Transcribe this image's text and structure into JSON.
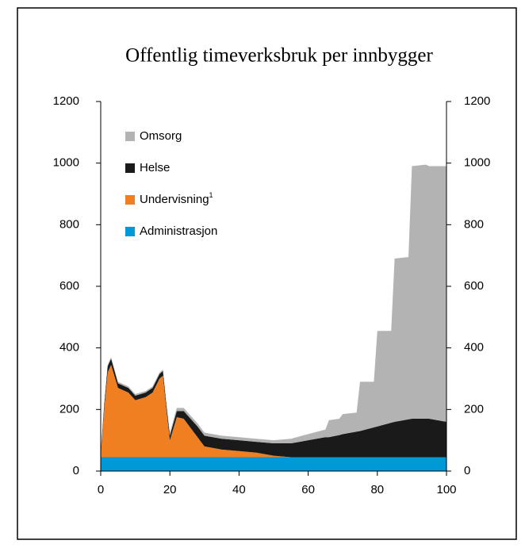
{
  "chart_data": {
    "type": "stacked_area",
    "title": "Offentlig timeverksbruk per innbygger",
    "x": [
      0,
      1,
      2,
      3,
      5,
      8,
      10,
      13,
      15,
      17,
      18,
      19,
      20,
      22,
      24,
      26,
      28,
      30,
      35,
      40,
      45,
      50,
      55,
      60,
      65,
      66,
      69,
      70,
      74,
      75,
      79,
      80,
      84,
      85,
      89,
      90,
      94,
      95,
      100
    ],
    "series": [
      {
        "name": "Omsorg",
        "color": "#b3b3b3",
        "values": [
          5,
          5,
          5,
          5,
          5,
          5,
          5,
          5,
          5,
          5,
          5,
          5,
          10,
          10,
          10,
          10,
          10,
          10,
          10,
          10,
          10,
          10,
          15,
          20,
          25,
          55,
          53,
          65,
          62,
          160,
          148,
          310,
          298,
          530,
          527,
          820,
          825,
          820,
          830
        ]
      },
      {
        "name": "Helse",
        "color": "#1a1a1a",
        "values": [
          10,
          15,
          20,
          20,
          15,
          15,
          15,
          15,
          15,
          15,
          15,
          15,
          15,
          20,
          25,
          30,
          35,
          35,
          35,
          35,
          35,
          40,
          45,
          55,
          65,
          65,
          72,
          75,
          83,
          85,
          97,
          100,
          112,
          115,
          123,
          125,
          125,
          125,
          115
        ]
      },
      {
        "name": "Undervisning",
        "footnote": "1",
        "color": "#f07f22",
        "values": [
          5,
          155,
          275,
          300,
          225,
          210,
          185,
          195,
          210,
          255,
          265,
          155,
          55,
          130,
          125,
          95,
          65,
          35,
          25,
          20,
          15,
          5,
          0,
          0,
          0,
          0,
          0,
          0,
          0,
          0,
          0,
          0,
          0,
          0,
          0,
          0,
          0,
          0,
          0
        ]
      },
      {
        "name": "Administrasjon",
        "color": "#0099d8",
        "values": [
          45,
          45,
          45,
          45,
          45,
          45,
          45,
          45,
          45,
          45,
          45,
          45,
          45,
          45,
          45,
          45,
          45,
          45,
          45,
          45,
          45,
          45,
          45,
          45,
          45,
          45,
          45,
          45,
          45,
          45,
          45,
          45,
          45,
          45,
          45,
          45,
          45,
          45,
          45
        ]
      }
    ],
    "xlim": [
      0,
      100
    ],
    "xticks": [
      0,
      20,
      40,
      60,
      80,
      100
    ],
    "ylim": [
      0,
      1200
    ],
    "yticks": [
      0,
      200,
      400,
      600,
      800,
      1000,
      1200
    ],
    "y2lim": [
      0,
      1200
    ],
    "y2ticks": [
      0,
      200,
      400,
      600,
      800,
      1000,
      1200
    ]
  }
}
